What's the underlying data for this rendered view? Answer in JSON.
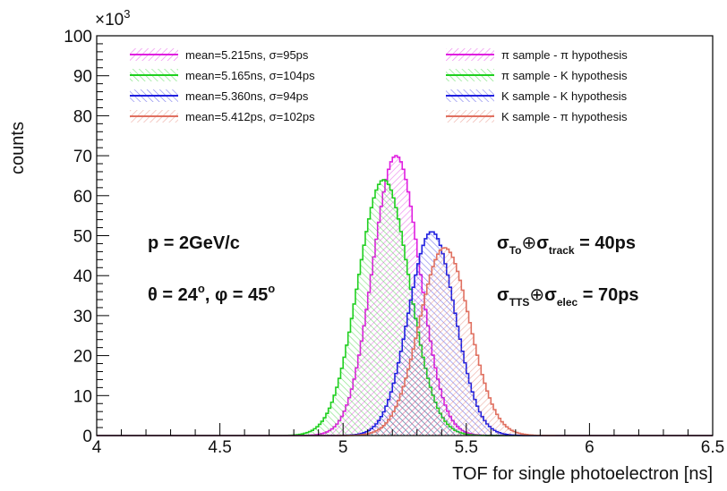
{
  "chart_data": {
    "type": "area",
    "xlabel": "TOF for single photoelectron [ns]",
    "ylabel": "counts",
    "xlim": [
      4,
      6.5
    ],
    "ylim": [
      0,
      100
    ],
    "y_multiplier_label": "×10",
    "y_multiplier_exp": "3",
    "xticks": [
      4,
      4.5,
      5,
      5.5,
      6,
      6.5
    ],
    "xtick_labels": [
      "4",
      "4.5",
      "5",
      "5.5",
      "6",
      "6.5"
    ],
    "yticks": [
      0,
      10,
      20,
      30,
      40,
      50,
      60,
      70,
      80,
      90,
      100
    ],
    "ytick_labels": [
      "0",
      "10",
      "20",
      "30",
      "40",
      "50",
      "60",
      "70",
      "80",
      "90",
      "100"
    ],
    "grid": false,
    "legend_position": "top",
    "legend": [
      {
        "text": "mean=5.215ns, σ=95ps",
        "color": "#e020e0"
      },
      {
        "text": "mean=5.165ns, σ=104ps",
        "color": "#20d020"
      },
      {
        "text": "mean=5.360ns, σ=94ps",
        "color": "#2020e0"
      },
      {
        "text": "mean=5.412ps, σ=102ps",
        "color": "#e07060"
      },
      {
        "text": "π sample - π hypothesis",
        "color": "#e020e0"
      },
      {
        "text": "π sample - K hypothesis",
        "color": "#20d020"
      },
      {
        "text": "K sample - K hypothesis",
        "color": "#2020e0"
      },
      {
        "text": "K sample - π hypothesis",
        "color": "#e07060"
      }
    ],
    "series": [
      {
        "name": "π sample - π hypothesis",
        "mean": 5.215,
        "sigma": 0.095,
        "peak": 70,
        "color": "#e020e0"
      },
      {
        "name": "π sample - K hypothesis",
        "mean": 5.165,
        "sigma": 0.104,
        "peak": 64,
        "color": "#20d020"
      },
      {
        "name": "K sample - K hypothesis",
        "mean": 5.36,
        "sigma": 0.094,
        "peak": 51,
        "color": "#2020e0"
      },
      {
        "name": "K sample - π hypothesis",
        "mean": 5.412,
        "sigma": 0.102,
        "peak": 47,
        "color": "#e07060"
      }
    ],
    "annotations": {
      "momentum": "p = 2GeV/c",
      "angles_theta": "θ = 24",
      "angles_phi": "φ = 45",
      "deg": "o",
      "sigma_symbol": "σ",
      "oplus": "⊕",
      "sub_to": "To",
      "sub_track": "track",
      "res1_value": " = 40ps",
      "sub_tts": "TTS",
      "sub_elec": "elec",
      "res2_value": " = 70ps"
    }
  }
}
